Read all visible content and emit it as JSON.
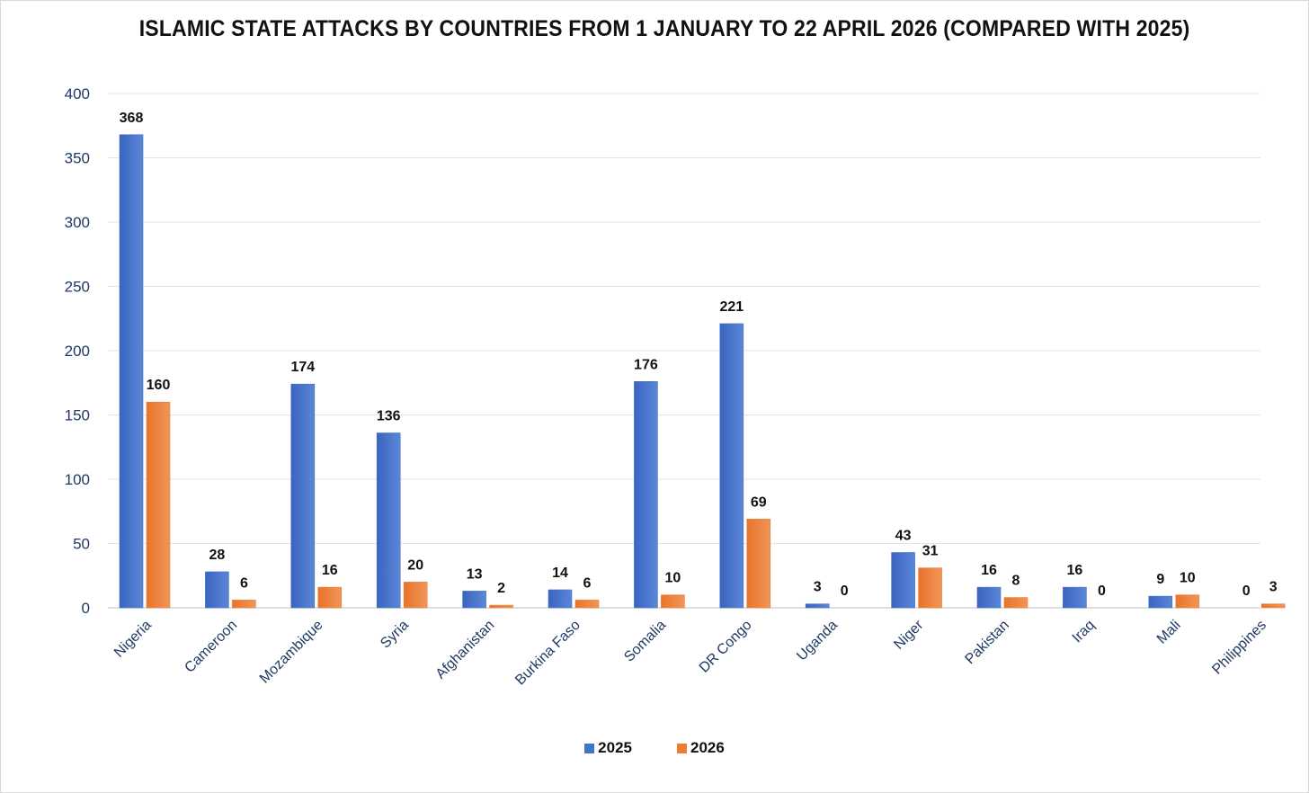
{
  "chart_data": {
    "type": "bar",
    "title": "ISLAMIC STATE ATTACKS BY COUNTRIES FROM 1 JANUARY TO 22 APRIL 2026 (COMPARED WITH 2025)",
    "xlabel": "",
    "ylabel": "",
    "ylim": [
      0,
      400
    ],
    "yticks": [
      0,
      50,
      100,
      150,
      200,
      250,
      300,
      350,
      400
    ],
    "grid": true,
    "legend_position": "bottom-center",
    "categories": [
      "Nigeria",
      "Cameroon",
      "Mozambique",
      "Syria",
      "Afghanistan",
      "Burkina Faso",
      "Somalia",
      "DR Congo",
      "Uganda",
      "Niger",
      "Pakistan",
      "Iraq",
      "Mali",
      "Philippines"
    ],
    "series": [
      {
        "name": "2025",
        "color": "#4472c4",
        "values": [
          368,
          28,
          174,
          136,
          13,
          14,
          176,
          221,
          3,
          43,
          16,
          16,
          9,
          0
        ]
      },
      {
        "name": "2026",
        "color": "#ed7d31",
        "values": [
          160,
          6,
          16,
          20,
          2,
          6,
          10,
          69,
          0,
          31,
          8,
          0,
          10,
          3
        ]
      }
    ]
  }
}
